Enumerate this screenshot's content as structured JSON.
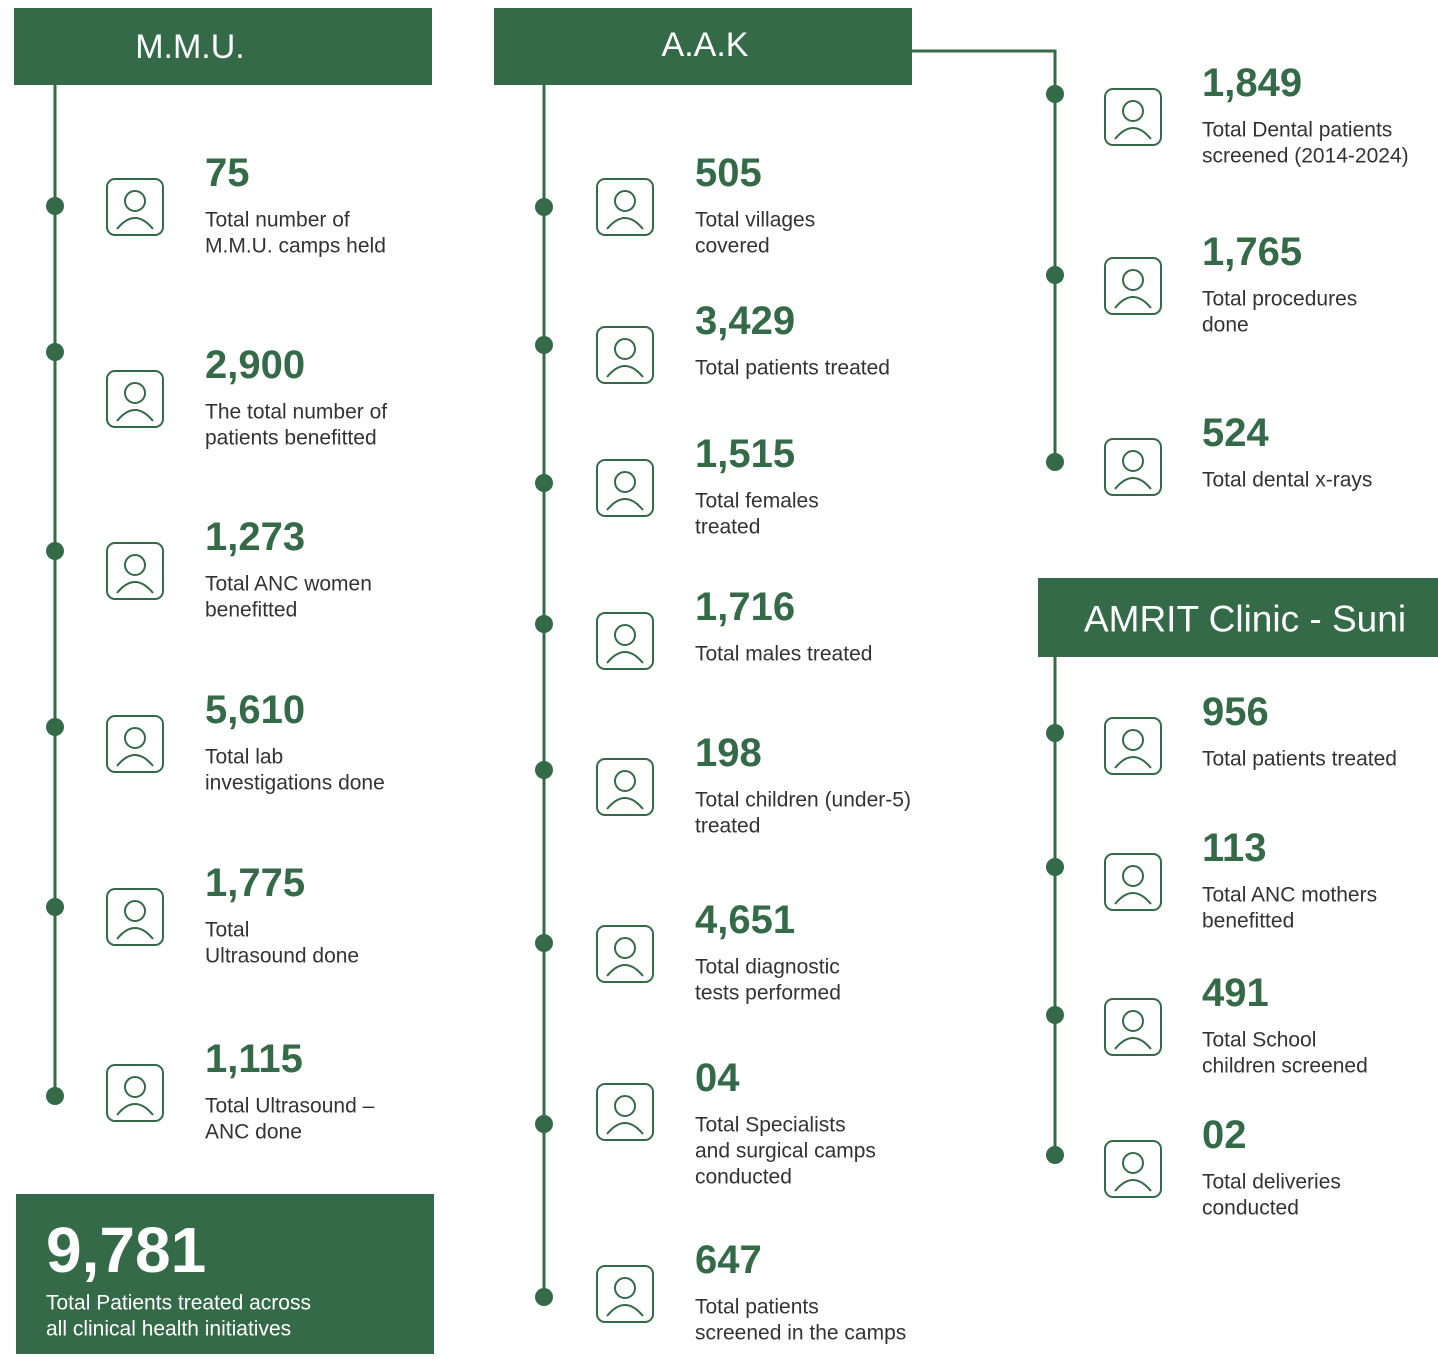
{
  "sections": [
    {
      "title": "M.M.U.",
      "items": [
        {
          "value": "75",
          "label": [
            "Total number of",
            "M.M.U. camps held"
          ]
        },
        {
          "value": "2,900",
          "label": [
            "The total number of",
            "patients benefitted"
          ]
        },
        {
          "value": "1,273",
          "label": [
            "Total ANC women",
            "benefitted"
          ]
        },
        {
          "value": "5,610",
          "label": [
            "Total lab",
            "investigations done"
          ]
        },
        {
          "value": "1,775",
          "label": [
            "Total",
            "Ultrasound done"
          ]
        },
        {
          "value": "1,115",
          "label": [
            "Total Ultrasound –",
            "ANC done"
          ]
        }
      ]
    },
    {
      "title": "A.A.K",
      "items": [
        {
          "value": "505",
          "label": [
            "Total villages",
            "covered"
          ]
        },
        {
          "value": "3,429",
          "label": [
            "Total patients treated"
          ]
        },
        {
          "value": "1,515",
          "label": [
            "Total females",
            "treated"
          ]
        },
        {
          "value": "1,716",
          "label": [
            "Total males treated"
          ]
        },
        {
          "value": "198",
          "label": [
            "Total children (under-5)",
            "treated"
          ]
        },
        {
          "value": "4,651",
          "label": [
            "Total diagnostic",
            "tests performed"
          ]
        },
        {
          "value": "04",
          "label": [
            "Total Specialists",
            "and surgical camps",
            "conducted"
          ]
        },
        {
          "value": "647",
          "label": [
            "Total patients",
            "screened in the camps"
          ]
        }
      ]
    },
    {
      "items": [
        {
          "value": "1,849",
          "label": [
            "Total Dental patients",
            "screened (2014-2024)"
          ]
        },
        {
          "value": "1,765",
          "label": [
            "Total procedures",
            "done"
          ]
        },
        {
          "value": "524",
          "label": [
            "Total dental x-rays"
          ]
        }
      ]
    },
    {
      "title": "AMRIT Clinic - Suni",
      "items": [
        {
          "value": "956",
          "label": [
            "Total patients treated"
          ]
        },
        {
          "value": "113",
          "label": [
            "Total ANC mothers",
            "benefitted"
          ]
        },
        {
          "value": "491",
          "label": [
            "Total School",
            "children screened"
          ]
        },
        {
          "value": "02",
          "label": [
            "Total deliveries",
            "conducted"
          ]
        }
      ]
    }
  ],
  "total": {
    "value": "9,781",
    "label": [
      "Total Patients treated across",
      "all clinical health initiatives"
    ]
  }
}
